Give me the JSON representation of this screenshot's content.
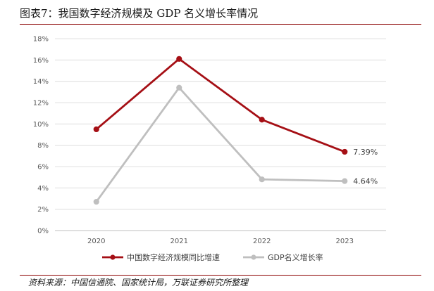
{
  "figure": {
    "title": "图表7：我国数字经济规模及 GDP 名义增长率情况",
    "source": "资料来源：中国信通院、国家统计局，万联证券研究所整理"
  },
  "chart_data": {
    "type": "line",
    "title": "",
    "xlabel": "",
    "ylabel": "",
    "categories": [
      "2020",
      "2021",
      "2022",
      "2023"
    ],
    "ylim": [
      0,
      18
    ],
    "y_ticks": [
      0,
      2,
      4,
      6,
      8,
      10,
      12,
      14,
      16,
      18
    ],
    "y_tick_labels": [
      "0%",
      "2%",
      "4%",
      "6%",
      "8%",
      "10%",
      "12%",
      "14%",
      "16%",
      "18%"
    ],
    "grid": "horizontal",
    "legend_position": "bottom",
    "series": [
      {
        "name": "中国数字经济规模同比增速",
        "values": [
          9.5,
          16.1,
          10.4,
          7.39
        ],
        "color": "#a50f15",
        "point_labels": [
          "",
          "",
          "",
          "7.39%"
        ]
      },
      {
        "name": "GDP名义增长率",
        "values": [
          2.7,
          13.4,
          4.8,
          4.64
        ],
        "color": "#bfbfbf",
        "point_labels": [
          "",
          "",
          "",
          "4.64%"
        ]
      }
    ]
  }
}
